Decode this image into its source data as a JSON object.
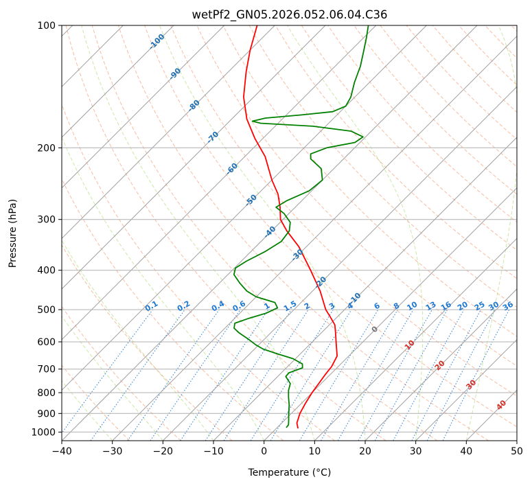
{
  "chart_data": {
    "type": "line",
    "subtype": "skew-t-log-p",
    "title": "wetPf2_GN05.2026.052.06.04.C36",
    "xlabel": "Temperature (°C)",
    "ylabel": "Pressure (hPa)",
    "xlim": [
      -40,
      50
    ],
    "ylim": [
      1050,
      100
    ],
    "y_scale": "log",
    "skew_degrees": 45,
    "grid": true,
    "x_ticks": [
      -40,
      -30,
      -20,
      -10,
      0,
      10,
      20,
      30,
      40,
      50
    ],
    "y_ticks": [
      100,
      200,
      300,
      400,
      500,
      600,
      700,
      800,
      900,
      1000
    ],
    "dry_adiabats": {
      "color": "#f4a582",
      "style": "dashed",
      "theta_c": [
        -30,
        -20,
        -10,
        0,
        10,
        20,
        30,
        40,
        50,
        60,
        70,
        80,
        90,
        100,
        110,
        120,
        130,
        140,
        150,
        160,
        170,
        180,
        190,
        200
      ]
    },
    "moist_adiabats": {
      "color": "#a6d96a",
      "style": "dashed",
      "start_temp_c": [
        -30,
        -20,
        -10,
        0,
        10,
        20,
        30,
        40,
        50
      ]
    },
    "mixing_ratio_lines": {
      "color": "#1f78d2",
      "style": "dotted",
      "values_gkg": [
        0.1,
        0.2,
        0.4,
        0.6,
        1,
        1.5,
        2,
        3,
        4,
        6,
        8,
        10,
        13,
        16,
        20,
        25,
        30,
        36
      ],
      "labels": [
        "0.1",
        "0.2",
        "0.4",
        "0.6",
        "1",
        "1.5",
        "2",
        "3",
        "4",
        "6",
        "8",
        "10",
        "13",
        "16",
        "20",
        "25",
        "30",
        "36"
      ],
      "label_pressure": 500
    },
    "isotherm_labels": [
      {
        "text": "-100",
        "t": -100,
        "p": 110,
        "color": "#2171b5"
      },
      {
        "text": "-90",
        "t": -90,
        "p": 132,
        "color": "#2171b5"
      },
      {
        "text": "-80",
        "t": -80,
        "p": 158,
        "color": "#2171b5"
      },
      {
        "text": "-70",
        "t": -70,
        "p": 189,
        "color": "#2171b5"
      },
      {
        "text": "-60",
        "t": -60,
        "p": 226,
        "color": "#2171b5"
      },
      {
        "text": "-50",
        "t": -50,
        "p": 270,
        "color": "#2171b5"
      },
      {
        "text": "-40",
        "t": -40,
        "p": 323,
        "color": "#2171b5"
      },
      {
        "text": "-30",
        "t": -30,
        "p": 368,
        "color": "#2171b5"
      },
      {
        "text": "-20",
        "t": -20,
        "p": 430,
        "color": "#2171b5"
      },
      {
        "text": "-10",
        "t": -10,
        "p": 471,
        "color": "#2171b5"
      },
      {
        "text": "0",
        "t": 0,
        "p": 560,
        "color": "#777777"
      },
      {
        "text": "10",
        "t": 10,
        "p": 612,
        "color": "#d73027"
      },
      {
        "text": "20",
        "t": 20,
        "p": 687,
        "color": "#d73027"
      },
      {
        "text": "30",
        "t": 30,
        "p": 766,
        "color": "#d73027"
      },
      {
        "text": "40",
        "t": 40,
        "p": 860,
        "color": "#d73027"
      }
    ],
    "series": [
      {
        "color": "#ff0000",
        "values": [
          {
            "p": 980,
            "t": 4.3
          },
          {
            "p": 950,
            "t": 3.0
          },
          {
            "p": 900,
            "t": 1.7
          },
          {
            "p": 850,
            "t": 0.8
          },
          {
            "p": 800,
            "t": 0.0
          },
          {
            "p": 750,
            "t": -0.6
          },
          {
            "p": 720,
            "t": -1.0
          },
          {
            "p": 690,
            "t": -1.3
          },
          {
            "p": 650,
            "t": -2.3
          },
          {
            "p": 600,
            "t": -5.3
          },
          {
            "p": 570,
            "t": -7.2
          },
          {
            "p": 545,
            "t": -8.9
          },
          {
            "p": 520,
            "t": -11.5
          },
          {
            "p": 500,
            "t": -13.7
          },
          {
            "p": 450,
            "t": -18.5
          },
          {
            "p": 400,
            "t": -24.5
          },
          {
            "p": 350,
            "t": -31.5
          },
          {
            "p": 320,
            "t": -37.0
          },
          {
            "p": 300,
            "t": -40.5
          },
          {
            "p": 280,
            "t": -43.0
          },
          {
            "p": 260,
            "t": -46.0
          },
          {
            "p": 240,
            "t": -50.0
          },
          {
            "p": 210,
            "t": -56.0
          },
          {
            "p": 190,
            "t": -61.5
          },
          {
            "p": 170,
            "t": -67.0
          },
          {
            "p": 150,
            "t": -72.0
          },
          {
            "p": 130,
            "t": -76.5
          },
          {
            "p": 115,
            "t": -80.0
          },
          {
            "p": 100,
            "t": -83.5
          }
        ]
      },
      {
        "color": "#008000",
        "values": [
          {
            "p": 975,
            "t": 1.8
          },
          {
            "p": 960,
            "t": 1.7
          },
          {
            "p": 940,
            "t": 1.0
          },
          {
            "p": 900,
            "t": -0.5
          },
          {
            "p": 860,
            "t": -2.0
          },
          {
            "p": 820,
            "t": -3.8
          },
          {
            "p": 790,
            "t": -5.1
          },
          {
            "p": 760,
            "t": -6.1
          },
          {
            "p": 730,
            "t": -8.4
          },
          {
            "p": 715,
            "t": -8.5
          },
          {
            "p": 695,
            "t": -6.8
          },
          {
            "p": 680,
            "t": -7.6
          },
          {
            "p": 660,
            "t": -10.5
          },
          {
            "p": 640,
            "t": -15.0
          },
          {
            "p": 625,
            "t": -18.3
          },
          {
            "p": 610,
            "t": -20.6
          },
          {
            "p": 590,
            "t": -23.3
          },
          {
            "p": 570,
            "t": -26.3
          },
          {
            "p": 555,
            "t": -28.2
          },
          {
            "p": 540,
            "t": -29.0
          },
          {
            "p": 525,
            "t": -27.2
          },
          {
            "p": 510,
            "t": -24.8
          },
          {
            "p": 495,
            "t": -23.6
          },
          {
            "p": 480,
            "t": -25.2
          },
          {
            "p": 465,
            "t": -30.0
          },
          {
            "p": 450,
            "t": -33.0
          },
          {
            "p": 430,
            "t": -36.0
          },
          {
            "p": 410,
            "t": -38.8
          },
          {
            "p": 395,
            "t": -39.8
          },
          {
            "p": 380,
            "t": -39.0
          },
          {
            "p": 360,
            "t": -37.2
          },
          {
            "p": 340,
            "t": -36.0
          },
          {
            "p": 320,
            "t": -36.5
          },
          {
            "p": 305,
            "t": -38.0
          },
          {
            "p": 290,
            "t": -41.0
          },
          {
            "p": 280,
            "t": -43.8
          },
          {
            "p": 270,
            "t": -43.0
          },
          {
            "p": 255,
            "t": -40.5
          },
          {
            "p": 240,
            "t": -40.0
          },
          {
            "p": 225,
            "t": -42.5
          },
          {
            "p": 213,
            "t": -46.5
          },
          {
            "p": 207,
            "t": -47.5
          },
          {
            "p": 200,
            "t": -45.5
          },
          {
            "p": 194,
            "t": -41.0
          },
          {
            "p": 188,
            "t": -40.5
          },
          {
            "p": 182,
            "t": -44.0
          },
          {
            "p": 177,
            "t": -52.5
          },
          {
            "p": 174,
            "t": -63.5
          },
          {
            "p": 172,
            "t": -65.5
          },
          {
            "p": 169,
            "t": -63.5
          },
          {
            "p": 166,
            "t": -57.0
          },
          {
            "p": 163,
            "t": -51.5
          },
          {
            "p": 158,
            "t": -50.0
          },
          {
            "p": 150,
            "t": -50.8
          },
          {
            "p": 138,
            "t": -53.0
          },
          {
            "p": 126,
            "t": -55.0
          },
          {
            "p": 115,
            "t": -57.5
          },
          {
            "p": 107,
            "t": -59.5
          },
          {
            "p": 100,
            "t": -61.5
          }
        ]
      }
    ]
  }
}
